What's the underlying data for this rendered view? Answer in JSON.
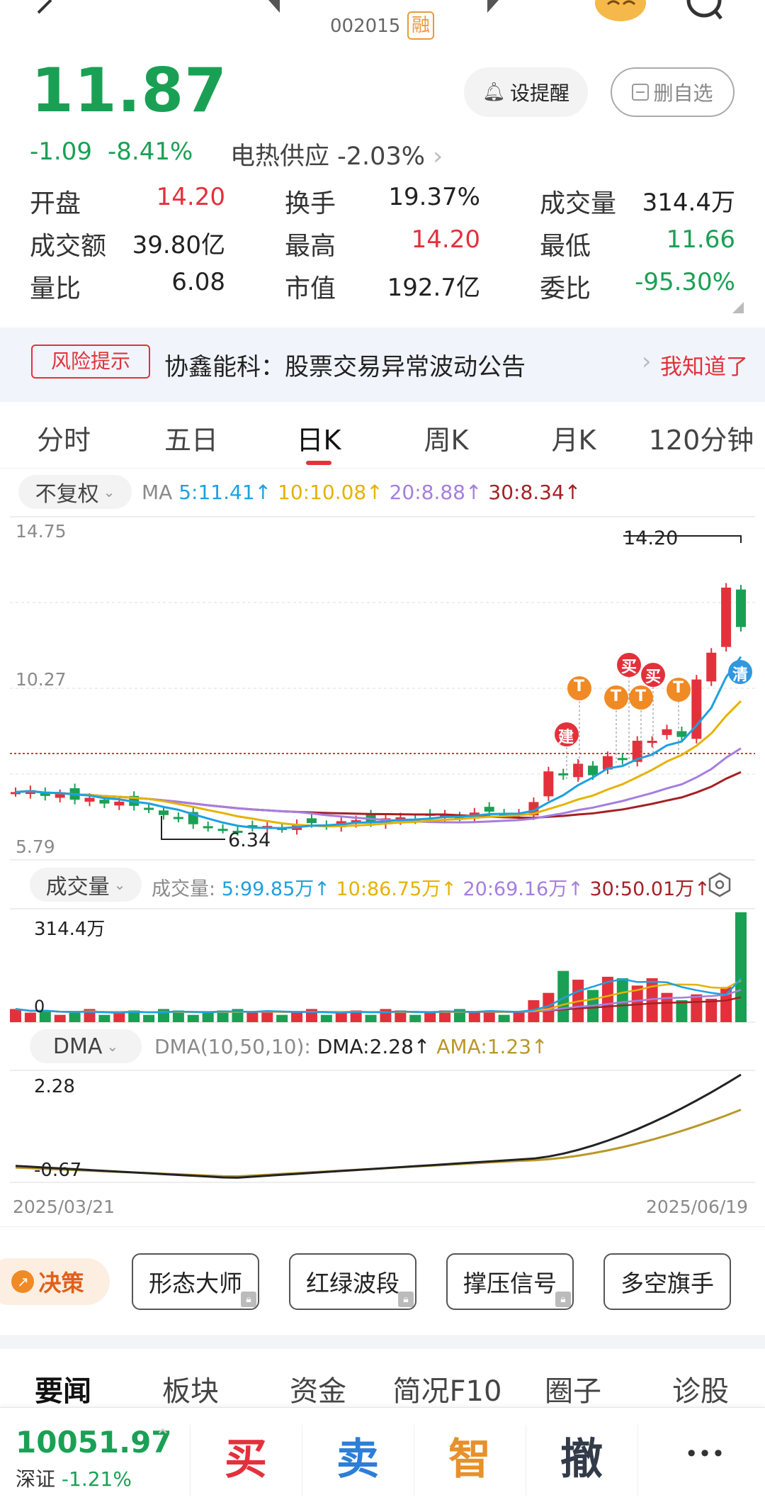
{
  "header": {
    "code": "002015",
    "margin_badge": "融"
  },
  "price": {
    "last": "11.87",
    "change": "-1.09",
    "change_pct": "-8.41%",
    "sector": "电热供应",
    "sector_pct": "-2.03%"
  },
  "buttons": {
    "alert": "设提醒",
    "remove": "删自选"
  },
  "stats": {
    "open_l": "开盘",
    "open_v": "14.20",
    "turnover_l": "换手",
    "turnover_v": "19.37%",
    "vol_l": "成交量",
    "vol_v": "314.4万",
    "amount_l": "成交额",
    "amount_v": "39.80亿",
    "high_l": "最高",
    "high_v": "14.20",
    "low_l": "最低",
    "low_v": "11.66",
    "ratio_l": "量比",
    "ratio_v": "6.08",
    "mcap_l": "市值",
    "mcap_v": "192.7亿",
    "wb_l": "委比",
    "wb_v": "-95.30%"
  },
  "risk": {
    "badge": "风险提示",
    "text": "协鑫能科：股票交易异常波动公告",
    "ack": "我知道了"
  },
  "tabs": [
    "分时",
    "五日",
    "日K",
    "周K",
    "月K",
    "120分钟"
  ],
  "kline": {
    "adjust": "不复权",
    "ma_label": "MA",
    "ma5": "5:11.41↑",
    "ma10": "10:10.08↑",
    "ma20": "20:8.88↑",
    "ma30": "30:8.34↑",
    "axis_top": "14.75",
    "axis_mid": "10.27",
    "axis_bot": "5.79",
    "high_mark": "14.20",
    "low_mark": "6.34",
    "sig_jian": "建",
    "sig_t": "T",
    "sig_buy": "买",
    "sig_qing": "清",
    "colors": {
      "ma5": "#1ea0e0",
      "ma10": "#e6b200",
      "ma20": "#a57ee0",
      "ma30": "#a52025",
      "up": "#e3313c",
      "down": "#1aa054"
    }
  },
  "volume": {
    "selector": "成交量",
    "label": "成交量:",
    "v5": "5:99.85万↑",
    "v10": "10:86.75万↑",
    "v20": "20:69.16万↑",
    "v30": "30:50.01万↑",
    "top": "314.4万",
    "zero": "0"
  },
  "dma": {
    "selector": "DMA",
    "params": "DMA(10,50,10):",
    "dma": "DMA:2.28↑",
    "ama": "AMA:1.23↑",
    "top": "2.28",
    "bot": "-0.67",
    "date_start": "2025/03/21",
    "date_end": "2025/06/19"
  },
  "features": {
    "decision": "决策",
    "b1": "形态大师",
    "b2": "红绿波段",
    "b3": "撑压信号",
    "b4": "多空旗手"
  },
  "news_tabs": [
    "要闻",
    "板块",
    "资金",
    "简况F10",
    "圈子",
    "诊股"
  ],
  "footer": {
    "index_value": "10051.97",
    "index_name": "深证",
    "index_pct": "-1.21%",
    "buy": "买",
    "sell": "卖",
    "smart": "智",
    "cancel": "撤",
    "more": "•••"
  }
}
